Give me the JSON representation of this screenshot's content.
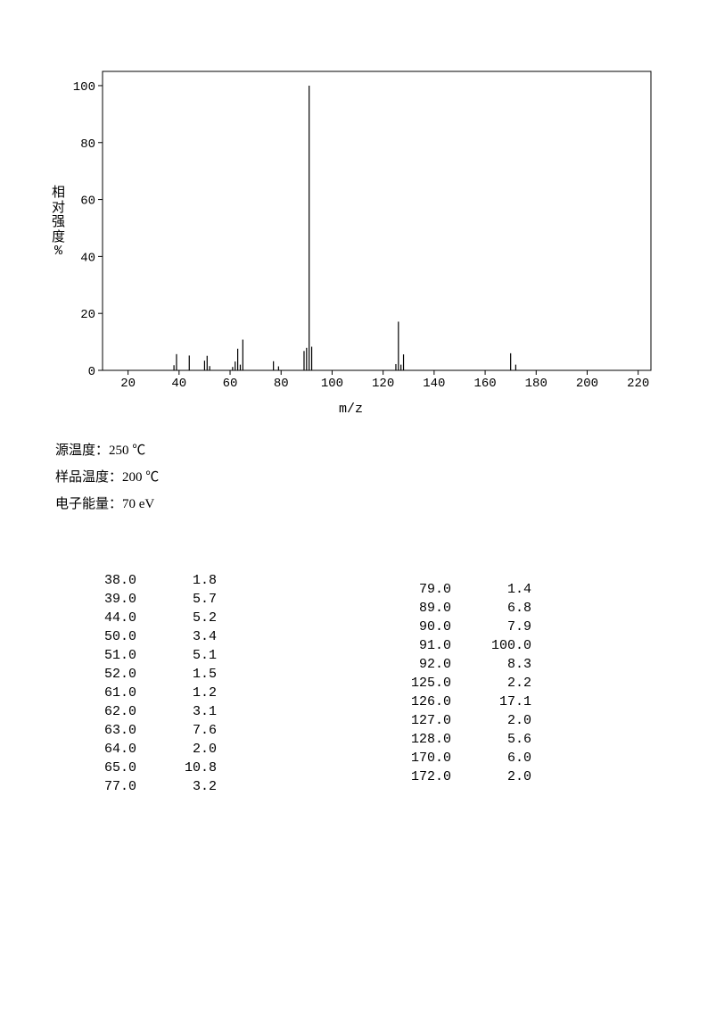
{
  "chart": {
    "type": "mass-spectrum",
    "x_label": "m/z",
    "y_label_cn": "相对强度",
    "y_label_sym": "%",
    "xlim": [
      10,
      225
    ],
    "ylim": [
      0,
      105
    ],
    "xtick_start": 20,
    "xtick_step": 20,
    "xtick_end": 220,
    "ytick_start": 0,
    "ytick_step": 20,
    "ytick_end": 100,
    "axis_color": "#000000",
    "background": "#ffffff",
    "tick_fontsize": 14,
    "label_fontsize": 15,
    "peaks": [
      {
        "mz": 38.0,
        "intensity": 1.8
      },
      {
        "mz": 39.0,
        "intensity": 5.7
      },
      {
        "mz": 44.0,
        "intensity": 5.2
      },
      {
        "mz": 50.0,
        "intensity": 3.4
      },
      {
        "mz": 51.0,
        "intensity": 5.1
      },
      {
        "mz": 52.0,
        "intensity": 1.5
      },
      {
        "mz": 61.0,
        "intensity": 1.2
      },
      {
        "mz": 62.0,
        "intensity": 3.1
      },
      {
        "mz": 63.0,
        "intensity": 7.6
      },
      {
        "mz": 64.0,
        "intensity": 2.0
      },
      {
        "mz": 65.0,
        "intensity": 10.8
      },
      {
        "mz": 77.0,
        "intensity": 3.2
      },
      {
        "mz": 79.0,
        "intensity": 1.4
      },
      {
        "mz": 89.0,
        "intensity": 6.8
      },
      {
        "mz": 90.0,
        "intensity": 7.9
      },
      {
        "mz": 91.0,
        "intensity": 100.0
      },
      {
        "mz": 92.0,
        "intensity": 8.3
      },
      {
        "mz": 125.0,
        "intensity": 2.2
      },
      {
        "mz": 126.0,
        "intensity": 17.1
      },
      {
        "mz": 127.0,
        "intensity": 2.0
      },
      {
        "mz": 128.0,
        "intensity": 5.6
      },
      {
        "mz": 170.0,
        "intensity": 6.0
      },
      {
        "mz": 172.0,
        "intensity": 2.0
      }
    ]
  },
  "meta": {
    "source_temp_label": "源温度：250 ℃",
    "sample_temp_label": "样品温度：200 ℃",
    "electron_energy_label": "电子能量：70 eV"
  },
  "table": {
    "col1": [
      {
        "mz": "38.0",
        "i": "1.8"
      },
      {
        "mz": "39.0",
        "i": "5.7"
      },
      {
        "mz": "44.0",
        "i": "5.2"
      },
      {
        "mz": "50.0",
        "i": "3.4"
      },
      {
        "mz": "51.0",
        "i": "5.1"
      },
      {
        "mz": "52.0",
        "i": "1.5"
      },
      {
        "mz": "61.0",
        "i": "1.2"
      },
      {
        "mz": "62.0",
        "i": "3.1"
      },
      {
        "mz": "63.0",
        "i": "7.6"
      },
      {
        "mz": "64.0",
        "i": "2.0"
      },
      {
        "mz": "65.0",
        "i": "10.8"
      },
      {
        "mz": "77.0",
        "i": "3.2"
      }
    ],
    "col2": [
      {
        "mz": "79.0",
        "i": "1.4"
      },
      {
        "mz": "89.0",
        "i": "6.8"
      },
      {
        "mz": "90.0",
        "i": "7.9"
      },
      {
        "mz": "91.0",
        "i": "100.0"
      },
      {
        "mz": "92.0",
        "i": "8.3"
      },
      {
        "mz": "125.0",
        "i": "2.2"
      },
      {
        "mz": "126.0",
        "i": "17.1"
      },
      {
        "mz": "127.0",
        "i": "2.0"
      },
      {
        "mz": "128.0",
        "i": "5.6"
      },
      {
        "mz": "170.0",
        "i": "6.0"
      },
      {
        "mz": "172.0",
        "i": "2.0"
      }
    ]
  }
}
